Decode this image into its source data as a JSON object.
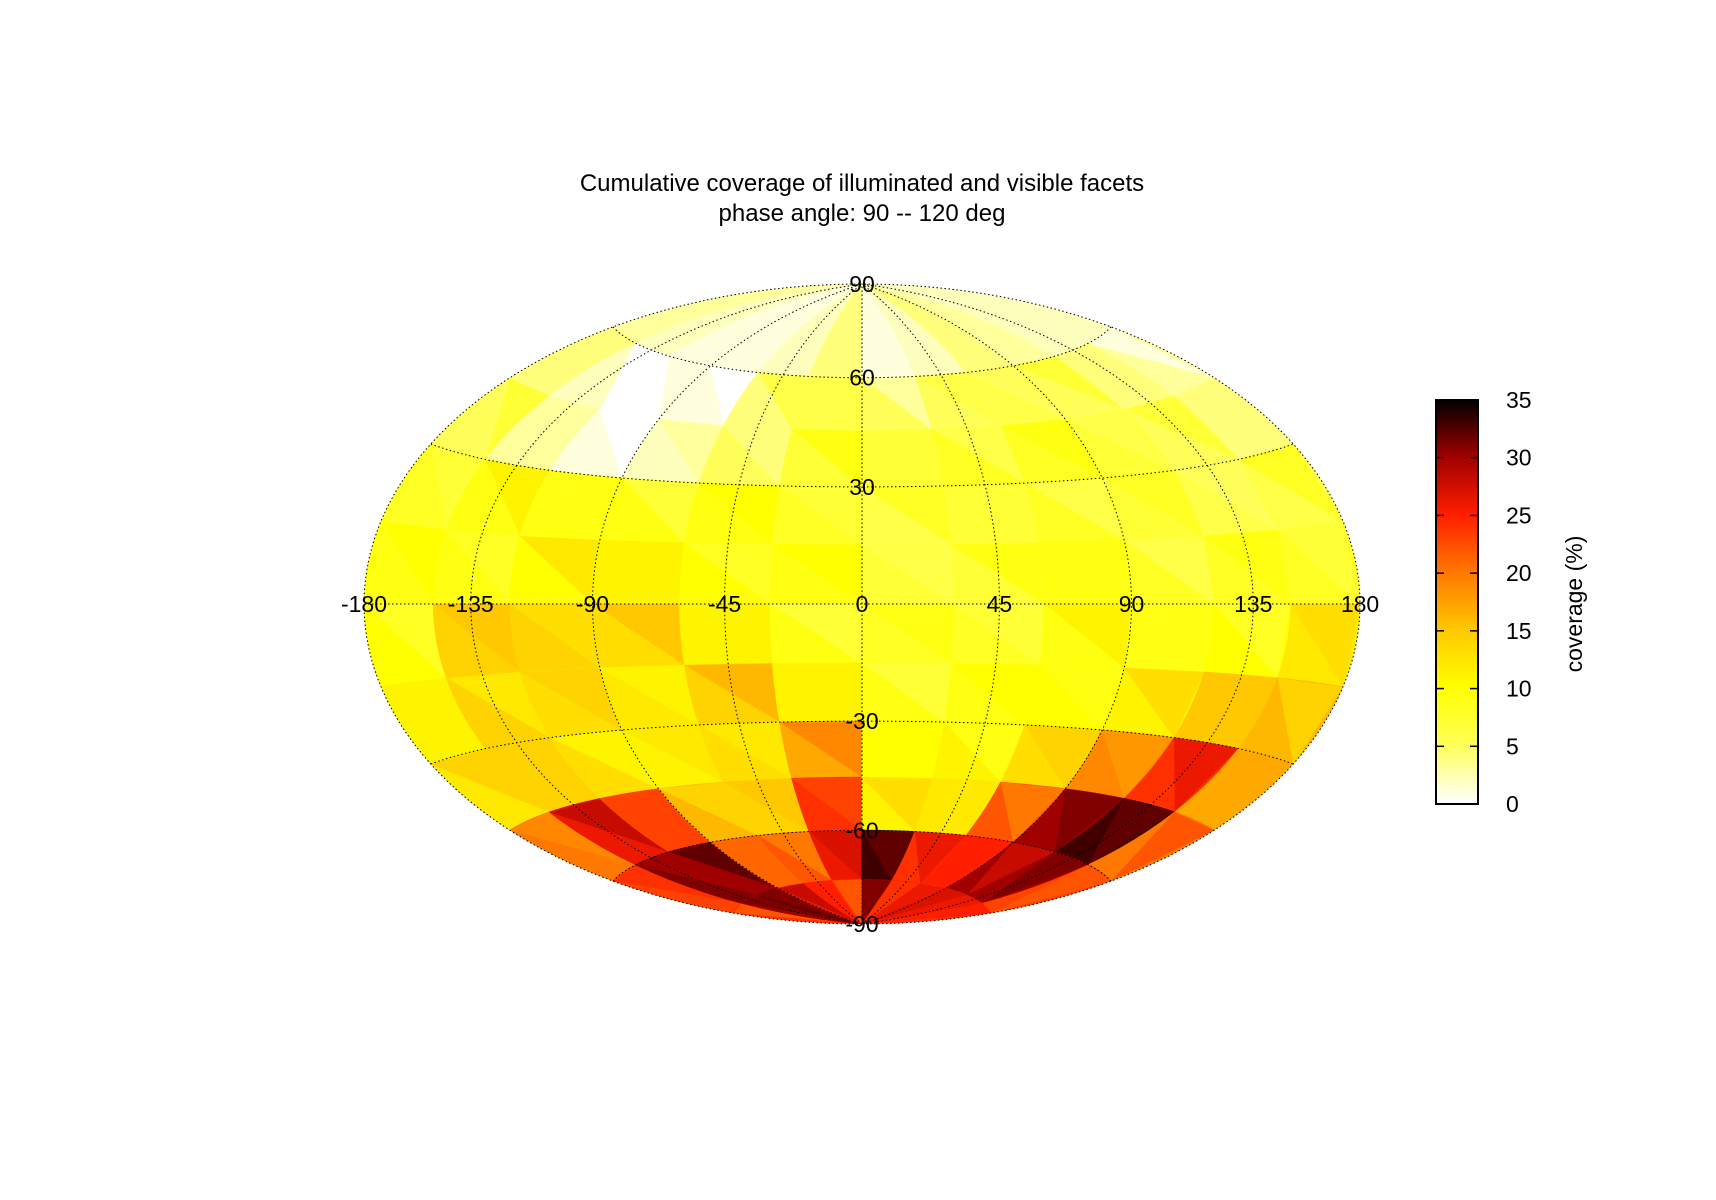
{
  "chart_data": {
    "type": "heatmap",
    "projection": "hammer-aitoff",
    "title": "Cumulative coverage of illuminated and visible facets",
    "subtitle": "phase angle:  90 -- 120 deg",
    "colorbar": {
      "label": "coverage (%)",
      "min": 0,
      "max": 35,
      "ticks": [
        "0",
        "5",
        "10",
        "15",
        "20",
        "25",
        "30",
        "35"
      ],
      "colormap": "hot",
      "colors": [
        "#ffffff",
        "#ffff33",
        "#ffff00",
        "#ffc800",
        "#ff8000",
        "#ff2000",
        "#b00000",
        "#000000"
      ]
    },
    "lon_ticks": [
      "-180",
      "-135",
      "-90",
      "-45",
      "0",
      "45",
      "90",
      "135",
      "180"
    ],
    "lat_ticks": [
      "90",
      "60",
      "30",
      "-30",
      "-60",
      "-90"
    ],
    "grid": true,
    "lon_values": [
      -180,
      -135,
      -90,
      -45,
      0,
      45,
      90,
      135,
      180
    ],
    "lat_values": [
      90,
      60,
      30,
      -30,
      -60,
      -90
    ],
    "cells": {
      "lon_edges": [
        -180,
        -150,
        -120,
        -90,
        -60,
        -30,
        0,
        30,
        60,
        90,
        120,
        150,
        180
      ],
      "lat_edges": [
        90,
        60,
        45,
        30,
        15,
        0,
        -15,
        -30,
        -45,
        -60,
        -75,
        -90
      ],
      "values": [
        [
          3,
          2,
          1,
          1,
          2,
          4,
          1,
          2,
          4,
          3,
          2,
          2
        ],
        [
          4,
          2,
          0,
          1,
          4,
          6,
          5,
          5,
          6,
          5,
          4,
          3
        ],
        [
          5,
          3,
          1,
          2,
          5,
          7,
          7,
          8,
          8,
          7,
          5,
          4
        ],
        [
          8,
          9,
          9,
          9,
          9,
          8,
          6,
          7,
          8,
          7,
          6,
          6
        ],
        [
          9,
          9,
          10,
          11,
          10,
          9,
          7,
          7,
          9,
          8,
          8,
          8
        ],
        [
          10,
          14,
          14,
          13,
          11,
          9,
          8,
          8,
          9,
          9,
          10,
          12
        ],
        [
          11,
          14,
          13,
          12,
          14,
          11,
          9,
          9,
          10,
          11,
          15,
          16
        ],
        [
          12,
          14,
          13,
          11,
          13,
          17,
          10,
          11,
          13,
          19,
          24,
          17
        ],
        [
          20,
          26,
          23,
          16,
          14,
          24,
          11,
          12,
          22,
          30,
          33,
          20
        ],
        [
          23,
          31,
          30,
          21,
          22,
          26,
          33,
          24,
          25,
          30,
          30,
          23
        ],
        [
          24,
          30,
          32,
          26,
          25,
          24,
          30,
          25,
          24,
          27,
          28,
          24
        ]
      ]
    }
  }
}
